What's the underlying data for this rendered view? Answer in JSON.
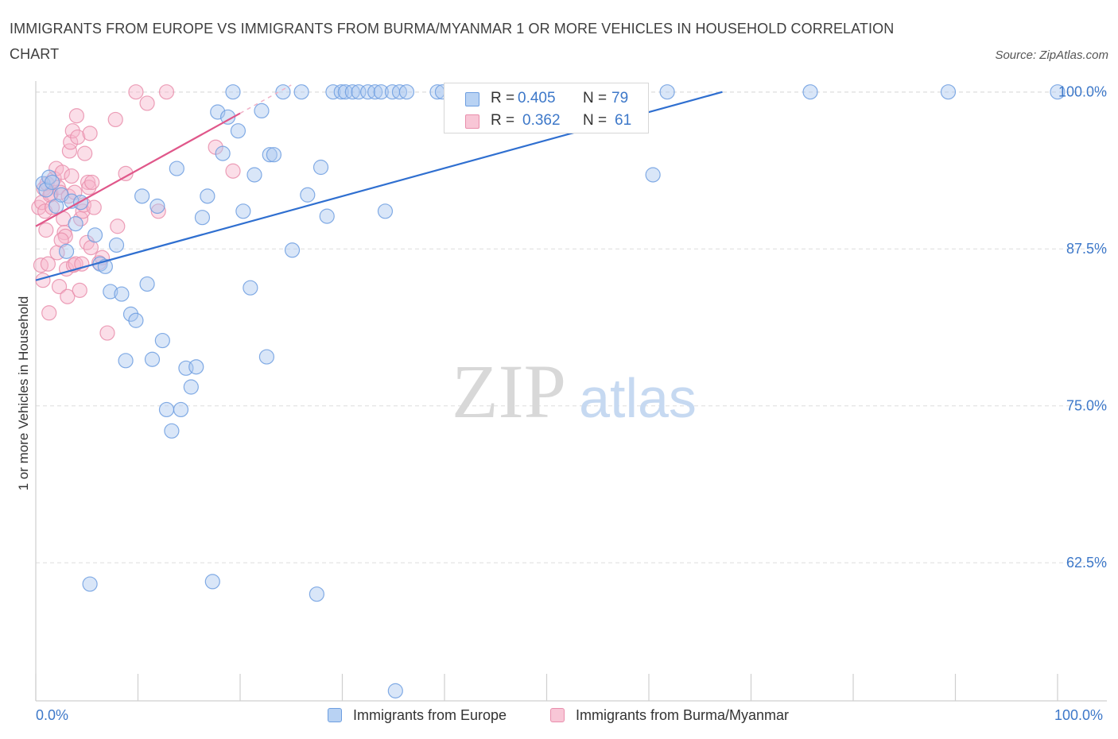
{
  "title": "IMMIGRANTS FROM EUROPE VS IMMIGRANTS FROM BURMA/MYANMAR 1 OR MORE VEHICLES IN HOUSEHOLD CORRELATION CHART",
  "source": "Source: ZipAtlas.com",
  "watermark": {
    "zip": "ZIP",
    "atlas": "atlas"
  },
  "legend": {
    "europe": {
      "r_label": "R =",
      "r_value": "0.405",
      "n_label": "N =",
      "n_value": "79"
    },
    "burma": {
      "r_label": "R =",
      "r_value": "0.362",
      "n_label": "N =",
      "n_value": "61"
    }
  },
  "bottom_legend": {
    "europe": "Immigrants from Europe",
    "burma": "Immigrants from Burma/Myanmar"
  },
  "colors": {
    "europe_fill": "#aac8f0",
    "europe_stroke": "#6d9ee0",
    "europe_line": "#2f6fd0",
    "burma_fill": "#f6b6cb",
    "burma_stroke": "#e98eac",
    "burma_line": "#e0578a",
    "tick_label": "#3d78c9",
    "grid": "#dedede"
  },
  "chart_data": {
    "type": "scatter",
    "title": "IMMIGRANTS FROM EUROPE VS IMMIGRANTS FROM BURMA/MYANMAR 1 OR MORE VEHICLES IN HOUSEHOLD CORRELATION CHART",
    "xlabel": "",
    "ylabel": "1 or more Vehicles in Household",
    "xlim": [
      0,
      100
    ],
    "ylim": [
      51.5,
      101.5
    ],
    "x_tick_labels": [
      "0.0%",
      "100.0%"
    ],
    "y_ticks": [
      62.5,
      75.0,
      87.5,
      100.0
    ],
    "y_tick_labels": [
      "62.5%",
      "75.0%",
      "87.5%",
      "100.0%"
    ],
    "grid": true,
    "series": [
      {
        "name": "Immigrants from Europe",
        "R": 0.405,
        "N": 79,
        "trend": {
          "x": [
            0,
            67.2
          ],
          "y": [
            85.0,
            100.0
          ]
        },
        "points": [
          [
            0.7,
            92.7
          ],
          [
            1.0,
            92.2
          ],
          [
            1.3,
            93.2
          ],
          [
            1.6,
            92.8
          ],
          [
            2.0,
            90.9
          ],
          [
            2.5,
            91.8
          ],
          [
            3.0,
            87.3
          ],
          [
            3.5,
            91.3
          ],
          [
            3.9,
            89.5
          ],
          [
            4.4,
            91.2
          ],
          [
            5.3,
            60.8
          ],
          [
            5.8,
            88.6
          ],
          [
            6.3,
            86.3
          ],
          [
            6.8,
            86.1
          ],
          [
            7.3,
            84.1
          ],
          [
            7.9,
            87.8
          ],
          [
            8.4,
            83.9
          ],
          [
            8.8,
            78.6
          ],
          [
            9.3,
            82.3
          ],
          [
            9.8,
            81.8
          ],
          [
            10.4,
            91.7
          ],
          [
            10.9,
            84.7
          ],
          [
            11.4,
            78.7
          ],
          [
            11.9,
            90.9
          ],
          [
            12.4,
            80.2
          ],
          [
            12.8,
            74.7
          ],
          [
            13.3,
            73.0
          ],
          [
            13.8,
            93.9
          ],
          [
            14.2,
            74.7
          ],
          [
            14.7,
            78.0
          ],
          [
            15.2,
            76.5
          ],
          [
            15.7,
            78.1
          ],
          [
            16.3,
            90.0
          ],
          [
            16.8,
            91.7
          ],
          [
            17.3,
            61.0
          ],
          [
            17.8,
            98.4
          ],
          [
            18.3,
            95.1
          ],
          [
            18.8,
            98.0
          ],
          [
            19.3,
            100.0
          ],
          [
            19.8,
            96.9
          ],
          [
            20.3,
            90.5
          ],
          [
            21.0,
            84.4
          ],
          [
            21.4,
            93.4
          ],
          [
            22.1,
            98.5
          ],
          [
            22.6,
            78.9
          ],
          [
            22.9,
            95.0
          ],
          [
            23.3,
            95.0
          ],
          [
            24.2,
            100.0
          ],
          [
            25.1,
            87.4
          ],
          [
            26.0,
            100.0
          ],
          [
            26.6,
            91.8
          ],
          [
            27.5,
            60.0
          ],
          [
            27.9,
            94.0
          ],
          [
            28.5,
            90.1
          ],
          [
            29.1,
            100.0
          ],
          [
            29.9,
            100.0
          ],
          [
            30.3,
            100.0
          ],
          [
            31.0,
            100.0
          ],
          [
            31.6,
            100.0
          ],
          [
            32.5,
            100.0
          ],
          [
            33.2,
            100.0
          ],
          [
            33.8,
            100.0
          ],
          [
            34.2,
            90.5
          ],
          [
            34.9,
            100.0
          ],
          [
            35.2,
            52.3
          ],
          [
            35.6,
            100.0
          ],
          [
            36.3,
            100.0
          ],
          [
            39.3,
            100.0
          ],
          [
            39.8,
            100.0
          ],
          [
            44.0,
            100.0
          ],
          [
            47.0,
            100.0
          ],
          [
            53.0,
            100.0
          ],
          [
            56.0,
            100.0
          ],
          [
            57.6,
            100.0
          ],
          [
            60.4,
            93.4
          ],
          [
            61.8,
            100.0
          ],
          [
            75.8,
            100.0
          ],
          [
            89.3,
            100.0
          ],
          [
            100.0,
            100.0
          ]
        ]
      },
      {
        "name": "Immigrants from Burma/Myanmar",
        "R": 0.362,
        "N": 61,
        "trend": {
          "x": [
            0,
            20.0
          ],
          "y": [
            89.3,
            98.3
          ]
        },
        "points": [
          [
            0.3,
            90.8
          ],
          [
            0.5,
            86.2
          ],
          [
            0.6,
            91.2
          ],
          [
            0.7,
            85.0
          ],
          [
            0.8,
            92.3
          ],
          [
            0.9,
            90.5
          ],
          [
            1.0,
            89.0
          ],
          [
            1.1,
            92.7
          ],
          [
            1.2,
            86.3
          ],
          [
            1.3,
            82.4
          ],
          [
            1.5,
            91.9
          ],
          [
            1.6,
            90.8
          ],
          [
            1.8,
            93.1
          ],
          [
            2.0,
            93.9
          ],
          [
            2.1,
            87.2
          ],
          [
            2.2,
            92.4
          ],
          [
            2.3,
            84.5
          ],
          [
            2.4,
            92.0
          ],
          [
            2.6,
            93.6
          ],
          [
            2.7,
            89.9
          ],
          [
            2.8,
            88.8
          ],
          [
            2.9,
            88.5
          ],
          [
            3.0,
            85.9
          ],
          [
            3.1,
            83.7
          ],
          [
            3.2,
            91.7
          ],
          [
            3.3,
            95.3
          ],
          [
            3.4,
            96.0
          ],
          [
            3.5,
            93.3
          ],
          [
            3.6,
            96.9
          ],
          [
            3.7,
            86.2
          ],
          [
            3.8,
            92.0
          ],
          [
            3.9,
            86.3
          ],
          [
            4.0,
            98.1
          ],
          [
            4.1,
            96.4
          ],
          [
            4.3,
            84.2
          ],
          [
            4.4,
            89.9
          ],
          [
            4.5,
            86.3
          ],
          [
            4.6,
            90.5
          ],
          [
            4.7,
            91.0
          ],
          [
            4.8,
            95.1
          ],
          [
            5.0,
            88.0
          ],
          [
            5.1,
            92.8
          ],
          [
            5.2,
            92.4
          ],
          [
            5.3,
            96.7
          ],
          [
            5.4,
            87.6
          ],
          [
            5.5,
            92.8
          ],
          [
            5.7,
            90.8
          ],
          [
            6.2,
            86.4
          ],
          [
            6.5,
            86.8
          ],
          [
            7.0,
            80.8
          ],
          [
            7.8,
            97.8
          ],
          [
            8.0,
            89.3
          ],
          [
            8.8,
            93.5
          ],
          [
            9.8,
            100.0
          ],
          [
            10.9,
            99.1
          ],
          [
            12.0,
            90.5
          ],
          [
            12.8,
            100.0
          ],
          [
            17.6,
            95.6
          ],
          [
            19.3,
            93.7
          ],
          [
            1.4,
            91.8
          ],
          [
            2.5,
            88.2
          ]
        ]
      }
    ]
  }
}
